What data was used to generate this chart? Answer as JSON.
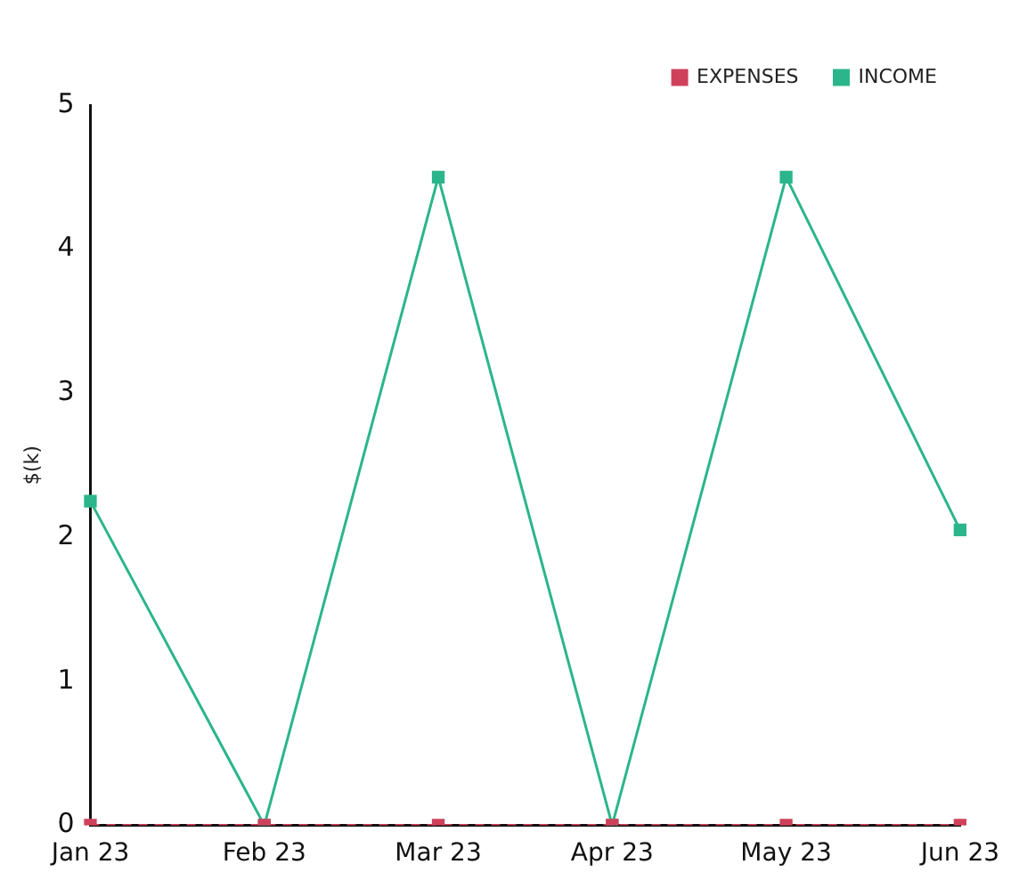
{
  "chart_data": {
    "type": "line",
    "ylabel": "$(k)",
    "categories": [
      "Jan 23",
      "Feb 23",
      "Mar 23",
      "Apr 23",
      "May 23",
      "Jun 23"
    ],
    "series": [
      {
        "name": "EXPENSES",
        "color": "#d0405a",
        "values": [
          0,
          0,
          0,
          0,
          0,
          0
        ],
        "line_style": "dashed"
      },
      {
        "name": "INCOME",
        "color": "#2bb58a",
        "values": [
          2.25,
          0,
          4.5,
          0,
          4.5,
          2.05
        ],
        "line_style": "solid"
      }
    ],
    "ylim": [
      0,
      5
    ],
    "yticks": [
      0,
      1,
      2,
      3,
      4,
      5
    ],
    "grid": false,
    "legend": "top right",
    "marker": "square"
  }
}
